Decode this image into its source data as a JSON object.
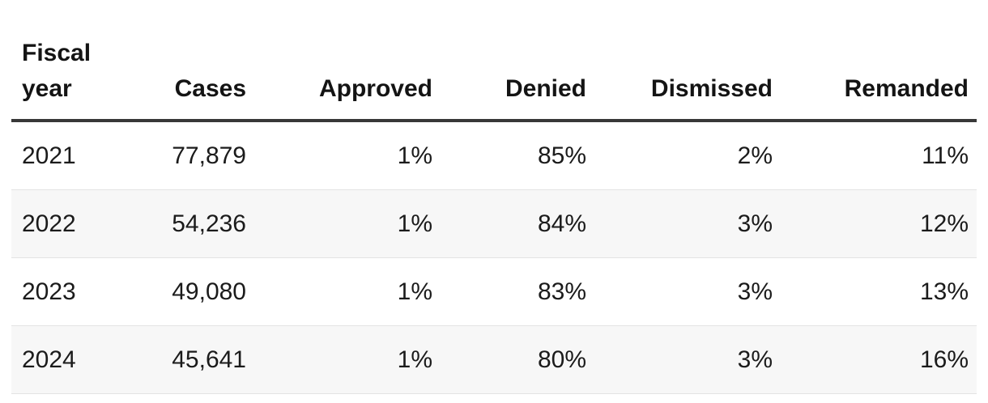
{
  "chart_data": {
    "type": "table",
    "columns": [
      "Fiscal year",
      "Cases",
      "Approved",
      "Denied",
      "Dismissed",
      "Remanded"
    ],
    "rows": [
      [
        "2021",
        "77,879",
        "1%",
        "85%",
        "2%",
        "11%"
      ],
      [
        "2022",
        "54,236",
        "1%",
        "84%",
        "3%",
        "12%"
      ],
      [
        "2023",
        "49,080",
        "1%",
        "83%",
        "3%",
        "13%"
      ],
      [
        "2024",
        "45,641",
        "1%",
        "80%",
        "3%",
        "16%"
      ]
    ]
  },
  "colors": {
    "header_rule": "#383838",
    "row_stripe": "#f7f7f7",
    "row_divider": "#e3e3e3",
    "text": "#1b1b1b",
    "background": "#ffffff"
  }
}
